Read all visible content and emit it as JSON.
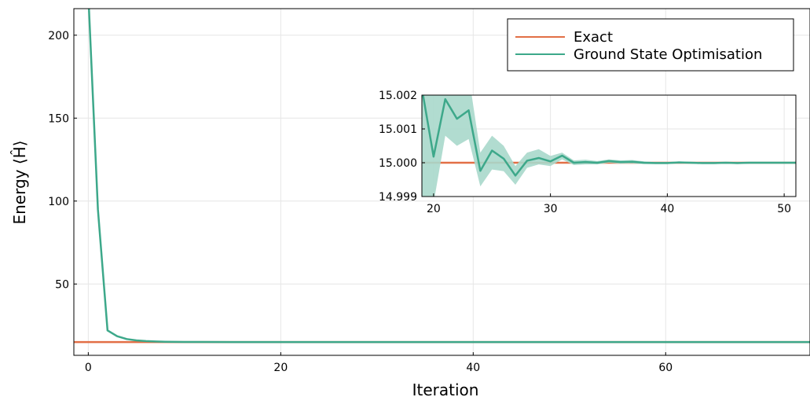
{
  "chart_data": [
    {
      "type": "line",
      "xlabel": "Iteration",
      "ylabel": "Energy ⟨Ĥ⟩",
      "xlim": [
        -1.5,
        75
      ],
      "ylim": [
        7,
        216
      ],
      "xticks": [
        "0",
        "20",
        "40",
        "60"
      ],
      "xtick_values": [
        0,
        20,
        40,
        60
      ],
      "yticks": [
        "50",
        "100",
        "150",
        "200"
      ],
      "ytick_values": [
        50,
        100,
        150,
        200
      ],
      "grid": true,
      "legend_position": "top-right",
      "series": [
        {
          "name": "Exact",
          "color": "#e26f46",
          "x": [
            -1.5,
            75
          ],
          "y": [
            15,
            15
          ]
        },
        {
          "name": "Ground State Optimisation",
          "color": "#3da88a",
          "x": [
            0,
            1,
            2,
            3,
            4,
            5,
            6,
            7,
            8,
            9,
            10,
            12,
            15,
            20,
            30,
            40,
            50,
            60,
            75
          ],
          "y": [
            225,
            95,
            22,
            18.5,
            16.8,
            16.0,
            15.6,
            15.35,
            15.2,
            15.12,
            15.08,
            15.03,
            15.01,
            15.0,
            15.0,
            15.0,
            15.0,
            15.0,
            15.0
          ]
        }
      ]
    },
    {
      "type": "line",
      "xlim": [
        19,
        51
      ],
      "ylim": [
        14.999,
        15.002
      ],
      "xticks": [
        "20",
        "30",
        "40",
        "50"
      ],
      "xtick_values": [
        20,
        30,
        40,
        50
      ],
      "yticks": [
        "14.999",
        "15.000",
        "15.001",
        "15.002"
      ],
      "ytick_values": [
        14.999,
        15.0,
        15.001,
        15.002
      ],
      "grid": true,
      "series": [
        {
          "name": "Exact",
          "color": "#e26f46",
          "x": [
            19,
            51
          ],
          "y": [
            15.0,
            15.0
          ]
        },
        {
          "name": "Ground State Optimisation",
          "color": "#3da88a",
          "band_color": "#a8d8cb",
          "x": [
            19,
            20,
            21,
            22,
            23,
            24,
            25,
            26,
            27,
            28,
            29,
            30,
            31,
            32,
            33,
            34,
            35,
            36,
            37,
            38,
            39,
            40,
            41,
            42,
            43,
            44,
            45,
            46,
            47,
            48,
            49,
            50,
            51
          ],
          "y": [
            15.0022,
            15.00018,
            15.00188,
            15.0013,
            15.00155,
            14.99976,
            15.00036,
            15.00012,
            14.99962,
            15.00006,
            15.00014,
            15.00004,
            15.00021,
            15.0,
            15.00002,
            15.0,
            15.00005,
            15.00002,
            15.00003,
            15.0,
            14.99999,
            14.99999,
            15.00001,
            15.0,
            14.99999,
            14.99999,
            15.0,
            14.99999,
            15.0,
            15.0,
            15.0,
            15.0,
            15.0
          ],
          "lower": [
            14.9988,
            14.9988,
            15.0008,
            15.0005,
            15.0007,
            14.9993,
            14.9998,
            14.99975,
            14.99935,
            14.99985,
            14.99995,
            14.9999,
            15.0001,
            14.99993,
            14.99995,
            14.99995,
            15.0,
            14.99997,
            14.99998,
            14.99996,
            14.99996,
            14.99996,
            14.99998,
            14.99997,
            14.99996,
            14.99996,
            14.99997,
            14.99996,
            14.99997,
            14.99997,
            14.99997,
            14.99997,
            14.99997
          ],
          "upper": [
            15.0035,
            15.0025,
            15.003,
            15.0025,
            15.0026,
            15.0003,
            15.0008,
            15.0005,
            14.9999,
            15.0003,
            15.0004,
            15.0002,
            15.0003,
            15.00007,
            15.00009,
            15.00005,
            15.0001,
            15.00007,
            15.00008,
            15.00004,
            15.00002,
            15.00002,
            15.00004,
            15.00003,
            15.00002,
            15.00002,
            15.00003,
            15.00002,
            15.00003,
            15.00003,
            15.00003,
            15.00003,
            15.00003
          ]
        }
      ]
    }
  ]
}
